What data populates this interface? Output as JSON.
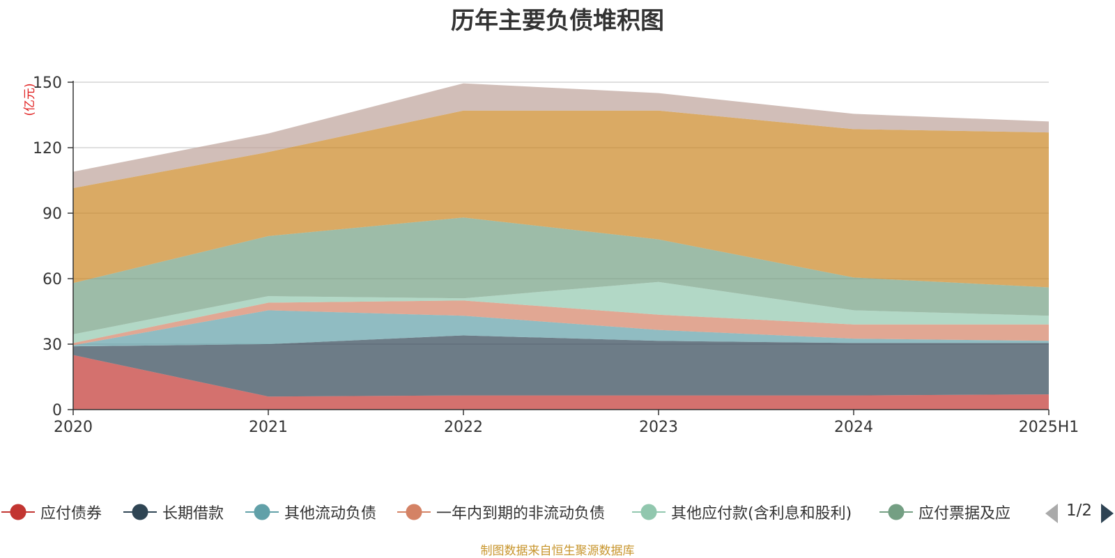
{
  "chart_data": {
    "type": "area",
    "stacked": true,
    "title": "历年主要负债堆积图",
    "unit_label": "(亿元)",
    "categories": [
      "2020",
      "2021",
      "2022",
      "2023",
      "2024",
      "2025H1"
    ],
    "ylim": [
      0,
      150
    ],
    "yticks": [
      "0",
      "30",
      "60",
      "90",
      "120",
      "150"
    ],
    "grid": true,
    "legend_position": "bottom",
    "series": [
      {
        "name": "应付债券",
        "color": "#c23531",
        "values": [
          25,
          6,
          6.5,
          6.5,
          6.5,
          7
        ]
      },
      {
        "name": "长期借款",
        "color": "#2f4554",
        "values": [
          4,
          24,
          27.5,
          25,
          24,
          23.5
        ]
      },
      {
        "name": "其他流动负债",
        "color": "#61a0a8",
        "values": [
          0.5,
          15.5,
          9,
          5,
          2,
          1
        ]
      },
      {
        "name": "一年内到期的非流动负债",
        "color": "#d48265",
        "values": [
          1,
          3.5,
          7,
          7,
          6.5,
          7.5
        ]
      },
      {
        "name": "其他应付款(含利息和股利)",
        "color": "#91c7ae",
        "values": [
          4,
          3,
          1,
          15,
          6.5,
          4
        ]
      },
      {
        "name": "应付票据及应付账款",
        "color": "#749f83",
        "values": [
          23.5,
          27.5,
          37,
          19.5,
          15,
          13
        ]
      },
      {
        "name": "",
        "color": "#ca8622",
        "values": [
          43.5,
          38.5,
          49,
          59,
          68,
          71
        ]
      },
      {
        "name": "",
        "color": "#bda29a",
        "values": [
          7.5,
          8.5,
          12.5,
          8,
          7,
          5
        ]
      }
    ]
  },
  "legend": {
    "items": [
      "应付债券",
      "长期借款",
      "其他流动负债",
      "一年内到期的非流动负债",
      "其他应付款(含利息和股利)",
      "应付票据及应"
    ],
    "page_indicator": "1/2"
  },
  "source_note": "制图数据来自恒生聚源数据库"
}
